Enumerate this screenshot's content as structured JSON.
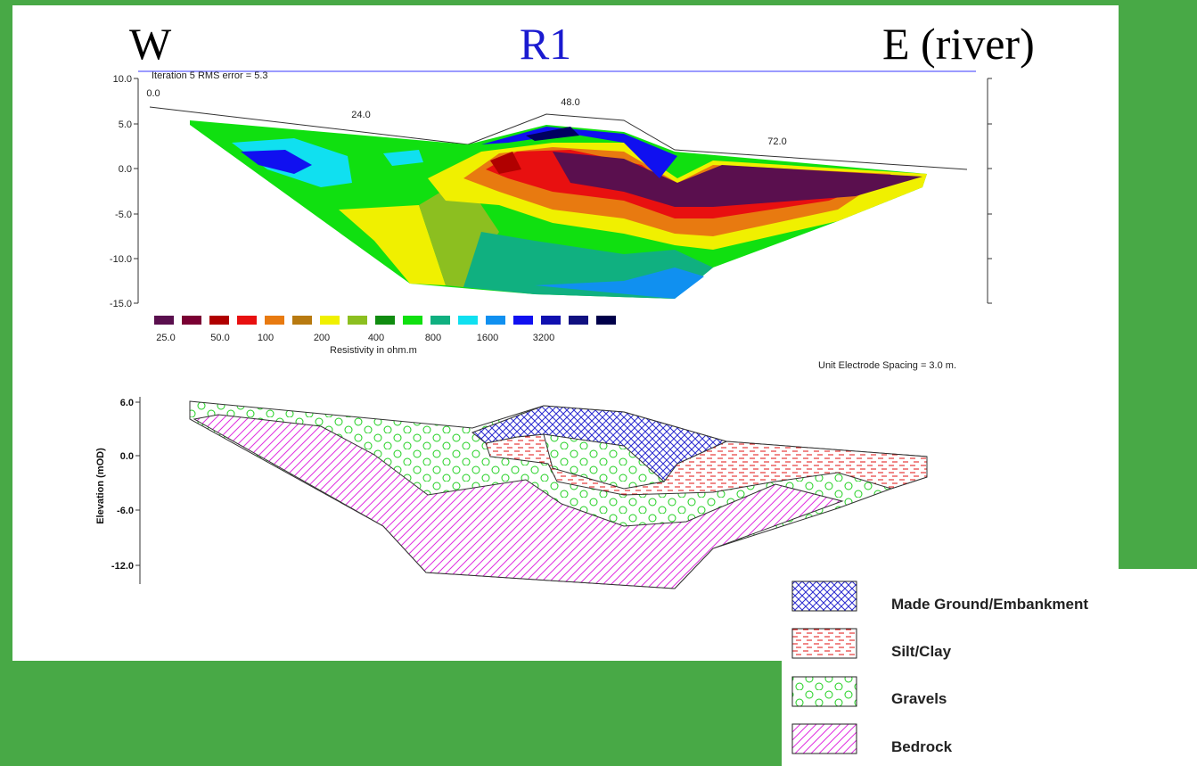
{
  "header": {
    "west": "W",
    "title": "R1",
    "east": "E (river)"
  },
  "resistivity_section": {
    "iteration": "Iteration 5 RMS error = 5.3",
    "y_ticks": [
      "10.0",
      "5.0",
      "0.0",
      "-5.0",
      "-10.0",
      "-15.0"
    ],
    "x_labels": [
      "0.0",
      "24.0",
      "48.0",
      "72.0"
    ],
    "scale_labels": [
      "25.0",
      "50.0",
      "100",
      "200",
      "400",
      "800",
      "1600",
      "3200"
    ],
    "scale_title": "Resistivity in ohm.m",
    "spacing_note": "Unit Electrode Spacing = 3.0 m."
  },
  "interpretation": {
    "y_label": "Elevation (mOD)",
    "y_ticks": [
      "6.0",
      "0.0",
      "-6.0",
      "-12.0"
    ]
  },
  "legend": {
    "items": [
      "Made Ground/Embankment",
      "Silt/Clay",
      "Gravels",
      "Bedrock"
    ]
  }
}
